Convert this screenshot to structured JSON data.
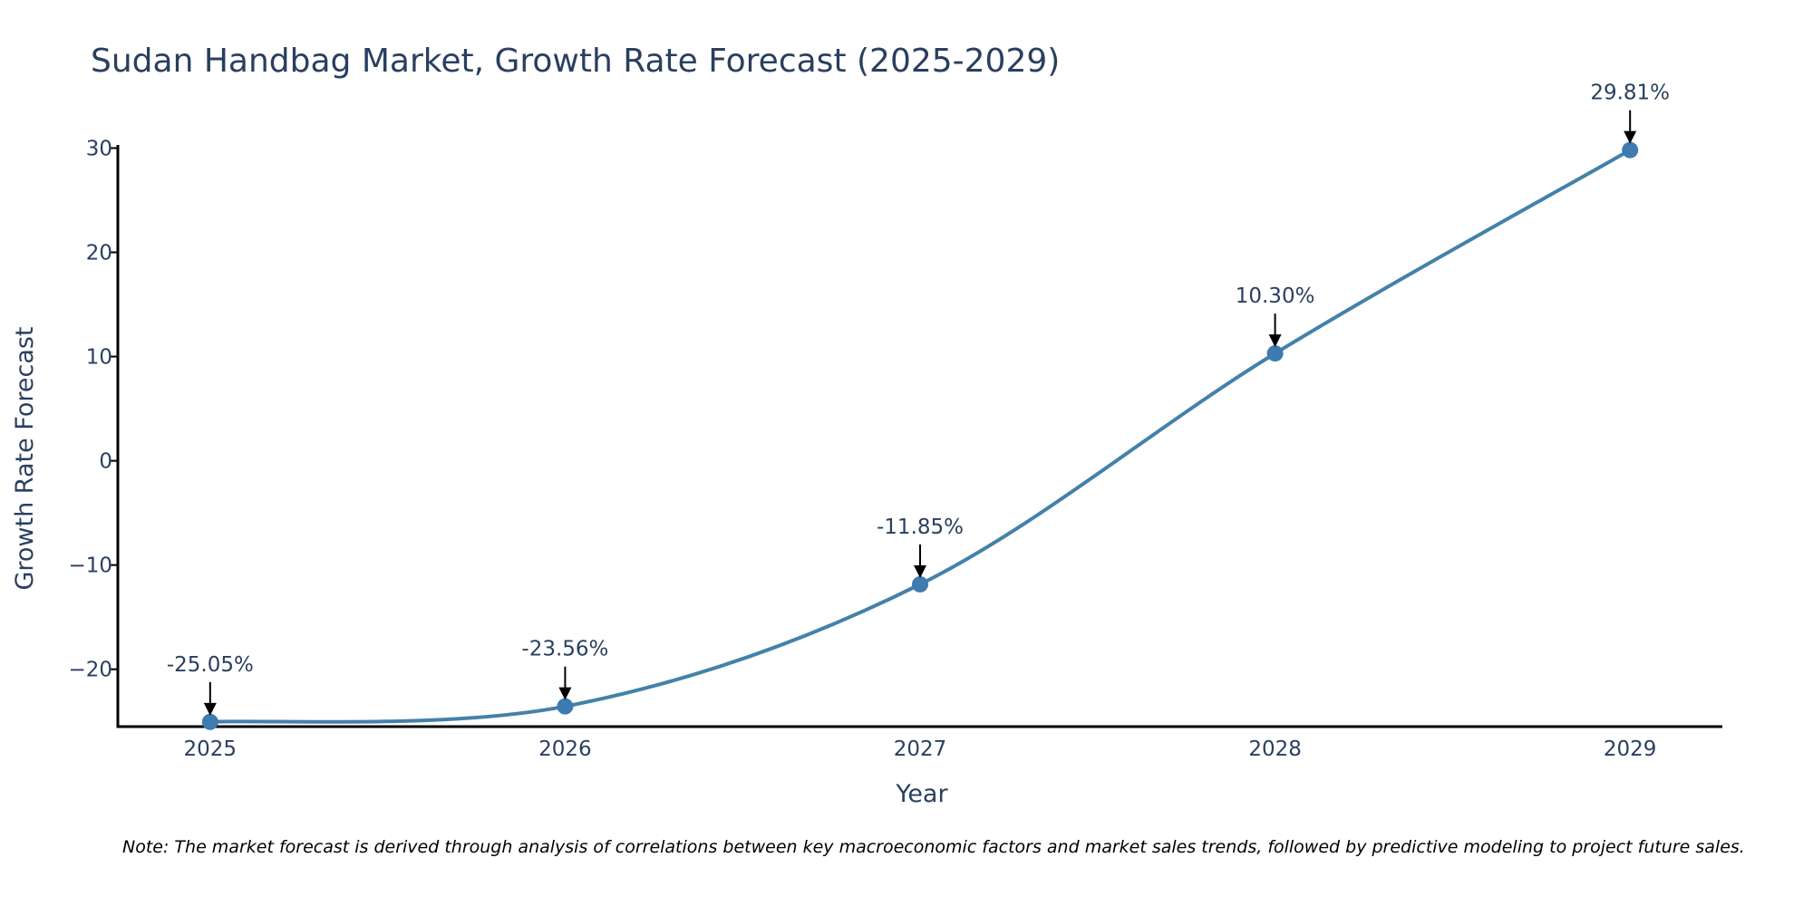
{
  "chart_data": {
    "type": "line",
    "title": "Sudan Handbag Market, Growth Rate Forecast (2025-2029)",
    "xlabel": "Year",
    "ylabel": "Growth Rate Forecast",
    "x": [
      "2025",
      "2026",
      "2027",
      "2028",
      "2029"
    ],
    "values": [
      -25.05,
      -23.56,
      -11.85,
      10.3,
      29.81
    ],
    "data_labels": [
      "-25.05%",
      "-23.56%",
      "-11.85%",
      "10.30%",
      "29.81%"
    ],
    "yticks": [
      30,
      20,
      10,
      0,
      -10,
      -20
    ],
    "ytick_labels": [
      "30",
      "20",
      "10",
      "0",
      "−10",
      "−20"
    ],
    "ylim": [
      -25.5,
      30.3
    ],
    "xlim": [
      -0.26,
      4.26
    ],
    "grid": false,
    "line_color": "#4481aa",
    "marker_color": "#3d7bb0",
    "note": "Note: The market forecast is derived through analysis of correlations between key macroeconomic factors and market sales trends, followed by predictive modeling to project future sales."
  }
}
